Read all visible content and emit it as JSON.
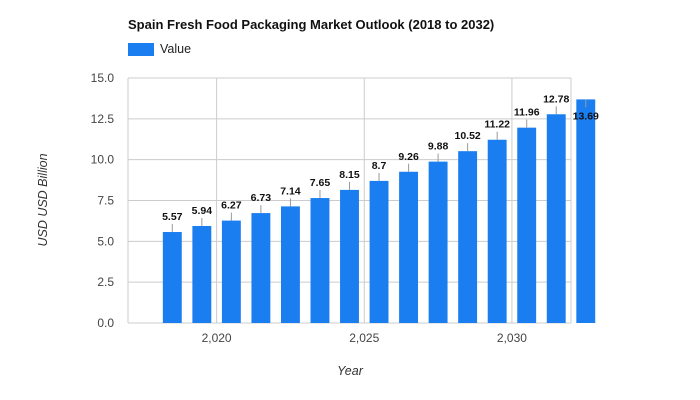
{
  "chart_data": {
    "type": "bar",
    "title": "Spain Fresh Food Packaging Market Outlook (2018 to 2032)",
    "xlabel": "Year",
    "ylabel": "USD USD Billion",
    "legend": {
      "label": "Value",
      "placement": "top-left"
    },
    "x": [
      2018,
      2019,
      2020,
      2021,
      2022,
      2023,
      2024,
      2025,
      2026,
      2027,
      2028,
      2029,
      2030,
      2031,
      2032
    ],
    "values": [
      5.57,
      5.94,
      6.27,
      6.73,
      7.14,
      7.65,
      8.15,
      8.7,
      9.26,
      9.88,
      10.52,
      11.22,
      11.96,
      12.78,
      13.69
    ],
    "data_labels": [
      "5.57",
      "5.94",
      "6.27",
      "6.73",
      "7.14",
      "7.65",
      "8.15",
      "8.7",
      "9.26",
      "9.88",
      "10.52",
      "11.22",
      "11.96",
      "12.78",
      "13.69"
    ],
    "ylim": [
      0,
      15
    ],
    "yticks": [
      0,
      2.5,
      5,
      7.5,
      10,
      12.5,
      15
    ],
    "ytick_labels": [
      "0.0",
      "2.5",
      "5.0",
      "7.5",
      "10.0",
      "12.5",
      "15.0"
    ],
    "xticks": [
      2020,
      2025,
      2030
    ],
    "xtick_labels": [
      "2,020",
      "2,025",
      "2,030"
    ],
    "xlim": [
      2017,
      2032
    ],
    "grid": true,
    "colors": {
      "bar": "#1a7ef0",
      "grid": "#cccccc",
      "label_line": "#999999"
    }
  }
}
